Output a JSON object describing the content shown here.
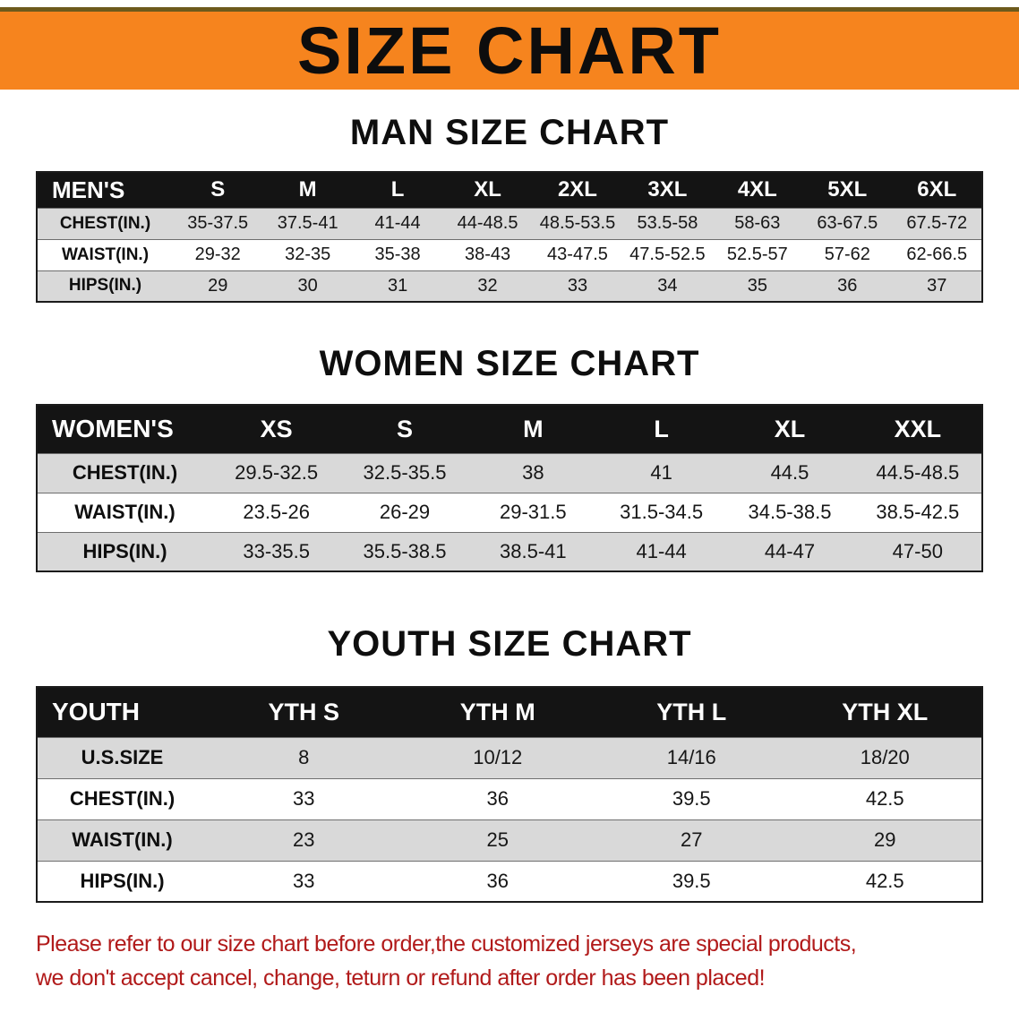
{
  "colors": {
    "banner_bg": "#f6841e",
    "table_header_bg": "#141414",
    "row_alt_bg": "#d9d9d9",
    "disclaimer_text": "#b11a1a"
  },
  "banner": {
    "title": "SIZE CHART"
  },
  "tables": [
    {
      "heading": "MAN SIZE CHART",
      "header": [
        "MEN'S",
        "S",
        "M",
        "L",
        "XL",
        "2XL",
        "3XL",
        "4XL",
        "5XL",
        "6XL"
      ],
      "rows": [
        [
          "CHEST(IN.)",
          "35-37.5",
          "37.5-41",
          "41-44",
          "44-48.5",
          "48.5-53.5",
          "53.5-58",
          "58-63",
          "63-67.5",
          "67.5-72"
        ],
        [
          "WAIST(IN.)",
          "29-32",
          "32-35",
          "35-38",
          "38-43",
          "43-47.5",
          "47.5-52.5",
          "52.5-57",
          "57-62",
          "62-66.5"
        ],
        [
          "HIPS(IN.)",
          "29",
          "30",
          "31",
          "32",
          "33",
          "34",
          "35",
          "36",
          "37"
        ]
      ]
    },
    {
      "heading": "WOMEN SIZE CHART",
      "header": [
        "WOMEN'S",
        "XS",
        "S",
        "M",
        "L",
        "XL",
        "XXL"
      ],
      "rows": [
        [
          "CHEST(IN.)",
          "29.5-32.5",
          "32.5-35.5",
          "38",
          "41",
          "44.5",
          "44.5-48.5"
        ],
        [
          "WAIST(IN.)",
          "23.5-26",
          "26-29",
          "29-31.5",
          "31.5-34.5",
          "34.5-38.5",
          "38.5-42.5"
        ],
        [
          "HIPS(IN.)",
          "33-35.5",
          "35.5-38.5",
          "38.5-41",
          "41-44",
          "44-47",
          "47-50"
        ]
      ]
    },
    {
      "heading": "YOUTH SIZE CHART",
      "header": [
        "YOUTH",
        "YTH S",
        "YTH M",
        "YTH L",
        "YTH XL"
      ],
      "rows": [
        [
          "U.S.SIZE",
          "8",
          "10/12",
          "14/16",
          "18/20"
        ],
        [
          "CHEST(IN.)",
          "33",
          "36",
          "39.5",
          "42.5"
        ],
        [
          "WAIST(IN.)",
          "23",
          "25",
          "27",
          "29"
        ],
        [
          "HIPS(IN.)",
          "33",
          "36",
          "39.5",
          "42.5"
        ]
      ]
    }
  ],
  "disclaimer": {
    "line1": "Please refer to our size chart before order,the customized jerseys are special products,",
    "line2": "we don't accept cancel, change, teturn or refund after order has been placed!"
  }
}
